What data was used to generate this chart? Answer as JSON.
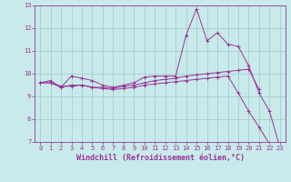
{
  "xlabel": "Windchill (Refroidissement éolien,°C)",
  "background_color": "#c8eaea",
  "grid_color": "#a0c8c8",
  "line_color": "#993399",
  "x": [
    0,
    1,
    2,
    3,
    4,
    5,
    6,
    7,
    8,
    9,
    10,
    11,
    12,
    13,
    14,
    15,
    16,
    17,
    18,
    19,
    20,
    21,
    22,
    23
  ],
  "series": [
    [
      9.6,
      9.7,
      9.4,
      9.9,
      9.8,
      9.7,
      9.5,
      9.4,
      9.5,
      9.6,
      9.85,
      9.9,
      9.9,
      9.9,
      11.7,
      12.85,
      11.45,
      11.8,
      11.3,
      11.2,
      10.35,
      9.15,
      8.35,
      6.75
    ],
    [
      9.6,
      9.6,
      9.4,
      9.5,
      9.5,
      9.4,
      9.4,
      9.35,
      9.45,
      9.5,
      9.6,
      9.7,
      9.75,
      9.8,
      9.9,
      9.95,
      10.0,
      10.05,
      10.1,
      10.15,
      10.2,
      9.3,
      null,
      null
    ],
    [
      9.6,
      9.6,
      9.45,
      9.45,
      9.5,
      9.4,
      9.35,
      9.3,
      9.35,
      9.4,
      9.5,
      9.55,
      9.6,
      9.65,
      9.7,
      9.75,
      9.8,
      9.85,
      9.9,
      9.15,
      8.35,
      7.65,
      6.9,
      null
    ]
  ],
  "ylim": [
    7,
    13
  ],
  "yticks": [
    7,
    8,
    9,
    10,
    11,
    12,
    13
  ],
  "xlim": [
    -0.5,
    23.5
  ],
  "xticks": [
    0,
    1,
    2,
    3,
    4,
    5,
    6,
    7,
    8,
    9,
    10,
    11,
    12,
    13,
    14,
    15,
    16,
    17,
    18,
    19,
    20,
    21,
    22,
    23
  ],
  "fontsize_label": 5.5,
  "fontsize_tick": 5.0,
  "fontsize_xlabel": 6.0
}
